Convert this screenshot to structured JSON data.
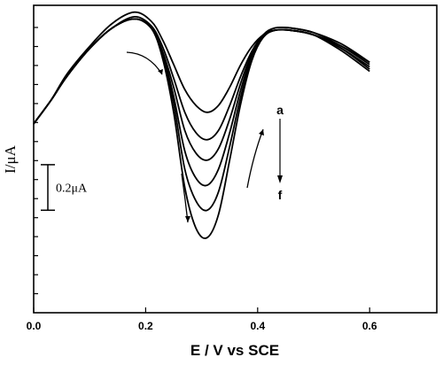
{
  "chart_data": {
    "type": "line",
    "title": "",
    "xlabel": "E / V vs SCE",
    "ylabel": "I/μA",
    "xlim": [
      0.0,
      0.72
    ],
    "ylim": [
      -1.35,
      0.0
    ],
    "grid": false,
    "legend": "none",
    "x_ticks": [
      0.0,
      0.2,
      0.4,
      0.6
    ],
    "x_tick_labels": [
      "0.0",
      "0.2",
      "0.4",
      "0.6"
    ],
    "y_tick_count": 15,
    "scale_bar": {
      "label": "0.2μA",
      "length_units": 0.2,
      "y_from": -0.9,
      "y_to": -0.7
    },
    "annotation": {
      "from_label": "a",
      "to_label": "f"
    },
    "series": [
      {
        "x": [
          0.0,
          0.03,
          0.06,
          0.1,
          0.14,
          0.18,
          0.21,
          0.23,
          0.25,
          0.27,
          0.29,
          0.31,
          0.33,
          0.35,
          0.37,
          0.39,
          0.41,
          0.43,
          0.46,
          0.5,
          0.55,
          0.6
        ],
        "y": [
          -0.52,
          -0.42,
          -0.3,
          -0.18,
          -0.08,
          -0.03,
          -0.07,
          -0.15,
          -0.26,
          -0.37,
          -0.44,
          -0.47,
          -0.44,
          -0.36,
          -0.26,
          -0.18,
          -0.13,
          -0.11,
          -0.11,
          -0.13,
          -0.18,
          -0.25
        ]
      },
      {
        "x": [
          0.0,
          0.03,
          0.06,
          0.1,
          0.14,
          0.18,
          0.21,
          0.23,
          0.25,
          0.27,
          0.29,
          0.31,
          0.33,
          0.35,
          0.37,
          0.39,
          0.41,
          0.43,
          0.46,
          0.5,
          0.55,
          0.6
        ],
        "y": [
          -0.52,
          -0.42,
          -0.31,
          -0.19,
          -0.1,
          -0.05,
          -0.09,
          -0.18,
          -0.32,
          -0.47,
          -0.56,
          -0.59,
          -0.55,
          -0.44,
          -0.31,
          -0.2,
          -0.13,
          -0.1,
          -0.1,
          -0.12,
          -0.17,
          -0.25
        ]
      },
      {
        "x": [
          0.0,
          0.03,
          0.06,
          0.1,
          0.14,
          0.18,
          0.21,
          0.23,
          0.25,
          0.27,
          0.29,
          0.31,
          0.33,
          0.35,
          0.37,
          0.39,
          0.41,
          0.43,
          0.46,
          0.5,
          0.55,
          0.6
        ],
        "y": [
          -0.52,
          -0.42,
          -0.31,
          -0.19,
          -0.1,
          -0.06,
          -0.1,
          -0.2,
          -0.36,
          -0.55,
          -0.65,
          -0.68,
          -0.63,
          -0.5,
          -0.34,
          -0.21,
          -0.13,
          -0.1,
          -0.1,
          -0.12,
          -0.18,
          -0.26
        ]
      },
      {
        "x": [
          0.0,
          0.03,
          0.06,
          0.1,
          0.14,
          0.18,
          0.21,
          0.23,
          0.25,
          0.27,
          0.29,
          0.31,
          0.33,
          0.35,
          0.37,
          0.39,
          0.41,
          0.43,
          0.46,
          0.5,
          0.55,
          0.6
        ],
        "y": [
          -0.52,
          -0.42,
          -0.31,
          -0.19,
          -0.1,
          -0.06,
          -0.1,
          -0.21,
          -0.4,
          -0.64,
          -0.76,
          -0.79,
          -0.72,
          -0.56,
          -0.37,
          -0.22,
          -0.14,
          -0.11,
          -0.11,
          -0.13,
          -0.19,
          -0.27
        ]
      },
      {
        "x": [
          0.0,
          0.03,
          0.06,
          0.1,
          0.14,
          0.18,
          0.21,
          0.23,
          0.25,
          0.27,
          0.29,
          0.31,
          0.33,
          0.35,
          0.37,
          0.39,
          0.41,
          0.43,
          0.46,
          0.5,
          0.55,
          0.6
        ],
        "y": [
          -0.52,
          -0.42,
          -0.31,
          -0.19,
          -0.1,
          -0.06,
          -0.1,
          -0.22,
          -0.43,
          -0.72,
          -0.86,
          -0.9,
          -0.82,
          -0.62,
          -0.4,
          -0.23,
          -0.14,
          -0.11,
          -0.11,
          -0.13,
          -0.19,
          -0.28
        ]
      },
      {
        "x": [
          0.0,
          0.03,
          0.06,
          0.1,
          0.14,
          0.18,
          0.21,
          0.23,
          0.25,
          0.27,
          0.29,
          0.31,
          0.33,
          0.35,
          0.37,
          0.39,
          0.41,
          0.43,
          0.46,
          0.5,
          0.55,
          0.6
        ],
        "y": [
          -0.52,
          -0.42,
          -0.31,
          -0.19,
          -0.1,
          -0.06,
          -0.1,
          -0.23,
          -0.47,
          -0.8,
          -0.98,
          -1.02,
          -0.92,
          -0.68,
          -0.43,
          -0.24,
          -0.14,
          -0.11,
          -0.11,
          -0.13,
          -0.2,
          -0.29
        ]
      }
    ]
  }
}
